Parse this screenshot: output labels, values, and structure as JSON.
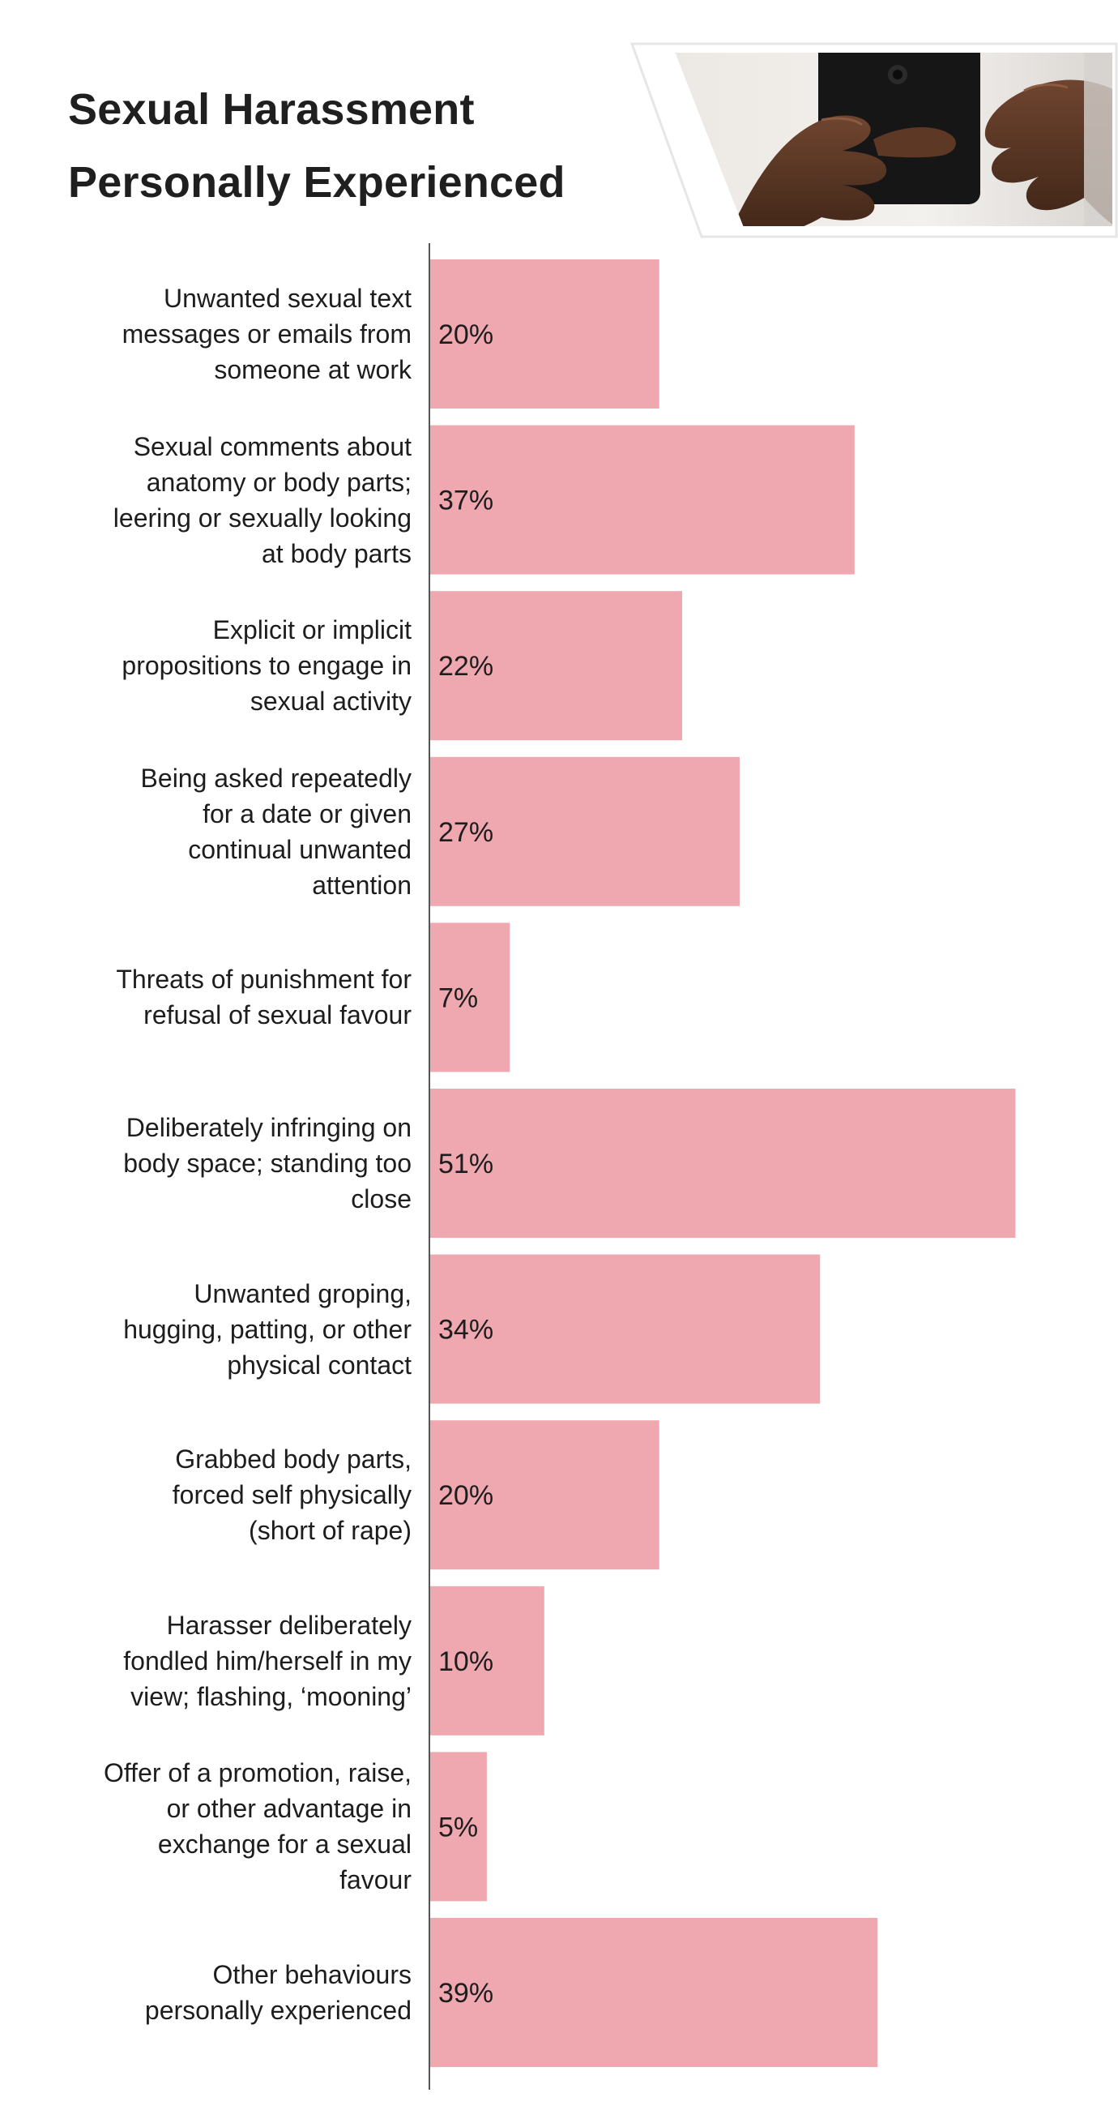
{
  "title_lines": [
    "Sexual Harassment",
    "Personally Experienced"
  ],
  "chart_data": {
    "type": "bar",
    "orientation": "horizontal",
    "title": "Sexual Harassment Personally Experienced",
    "categories": [
      "Unwanted sexual text messages or emails from someone at work",
      "Sexual comments about anatomy or body parts; leering or sexually looking at body parts",
      "Explicit or implicit propositions to engage in sexual activity",
      "Being asked repeatedly for a date or given continual unwanted attention",
      "Threats of punishment for refusal of sexual favour",
      "Deliberately infringing on body space; standing too close",
      "Unwanted groping, hugging, patting, or other physical contact",
      "Grabbed body parts, forced self physically (short of rape)",
      "Harasser deliberately fondled him/herself in my view; flashing, ‘mooning’",
      "Offer of a promotion, raise, or other advantage in exchange for a sexual favour",
      "Other behaviours personally experienced"
    ],
    "category_lines": [
      [
        "Unwanted sexual text",
        "messages or emails from",
        "someone at work"
      ],
      [
        "Sexual comments about",
        "anatomy or body parts;",
        "leering or sexually looking",
        "at body parts"
      ],
      [
        "Explicit or implicit",
        "propositions to engage in",
        "sexual activity"
      ],
      [
        "Being asked repeatedly",
        "for a date or given",
        "continual unwanted",
        "attention"
      ],
      [
        "Threats of punishment for",
        "refusal of sexual favour"
      ],
      [
        "Deliberately infringing on",
        "body space; standing too",
        "close"
      ],
      [
        "Unwanted groping,",
        "hugging, patting, or other",
        "physical contact"
      ],
      [
        "Grabbed body parts,",
        "forced self physically",
        "(short of rape)"
      ],
      [
        "Harasser deliberately",
        "fondled him/herself in my",
        "view; flashing, ‘mooning’"
      ],
      [
        "Offer of a promotion, raise,",
        "or other advantage in",
        "exchange for a sexual",
        "favour"
      ],
      [
        "Other behaviours",
        "personally experienced"
      ]
    ],
    "values": [
      20,
      37,
      22,
      27,
      7,
      51,
      34,
      20,
      10,
      5,
      39
    ],
    "value_labels": [
      "20%",
      "37%",
      "22%",
      "27%",
      "7%",
      "51%",
      "34%",
      "20%",
      "10%",
      "5%",
      "39%"
    ],
    "unit": "%",
    "bar_color": "#efa8b0",
    "axis_color": "#555555",
    "xlim": [
      0,
      56.4
    ],
    "grid": false,
    "legend": "none"
  },
  "photo": {
    "icon": "hands-holding-phone-photo",
    "frame_color": "#ffffff",
    "skin_color": "#5a3622",
    "phone_color": "#1a1a1a"
  }
}
